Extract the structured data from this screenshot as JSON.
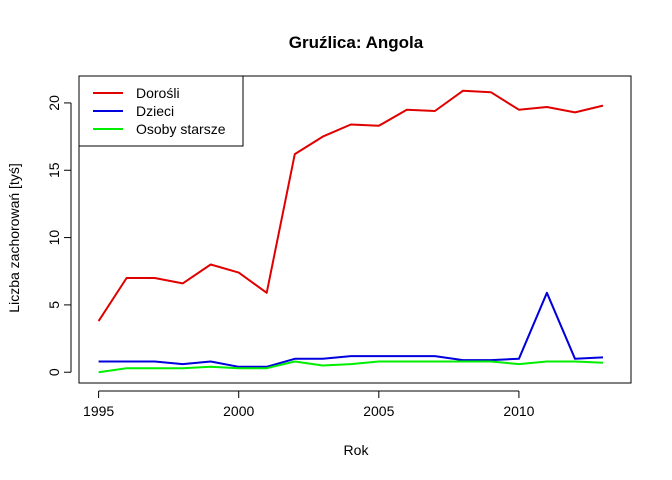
{
  "chart_data": {
    "type": "line",
    "title": "Gruźlica: Angola",
    "xlabel": "Rok",
    "ylabel": "Liczba zachorowań [tyś]",
    "x": [
      1995,
      1996,
      1997,
      1998,
      1999,
      2000,
      2001,
      2002,
      2003,
      2004,
      2005,
      2006,
      2007,
      2008,
      2009,
      2010,
      2011,
      2012,
      2013
    ],
    "xlim": [
      1994.3,
      2014
    ],
    "ylim": [
      -0.8,
      22
    ],
    "xticks": [
      1995,
      2000,
      2005,
      2010
    ],
    "yticks": [
      0,
      5,
      10,
      15,
      20
    ],
    "grid": false,
    "legend_position": "top-left",
    "series": [
      {
        "name": "Dorośli",
        "color": "#e00000",
        "values": [
          3.8,
          7.0,
          7.0,
          6.6,
          8.0,
          7.4,
          5.9,
          16.2,
          17.5,
          18.4,
          18.3,
          19.5,
          19.4,
          20.9,
          20.8,
          19.5,
          19.7,
          19.3,
          19.8
        ]
      },
      {
        "name": "Dzieci",
        "color": "#0000dd",
        "values": [
          0.8,
          0.8,
          0.8,
          0.6,
          0.8,
          0.4,
          0.4,
          1.0,
          1.0,
          1.2,
          1.2,
          1.2,
          1.2,
          0.9,
          0.9,
          1.0,
          5.9,
          1.0,
          1.1
        ]
      },
      {
        "name": "Osoby starsze",
        "color": "#00ee00",
        "values": [
          0.0,
          0.3,
          0.3,
          0.3,
          0.4,
          0.3,
          0.3,
          0.8,
          0.5,
          0.6,
          0.8,
          0.8,
          0.8,
          0.8,
          0.8,
          0.6,
          0.8,
          0.8,
          0.7
        ]
      }
    ]
  }
}
